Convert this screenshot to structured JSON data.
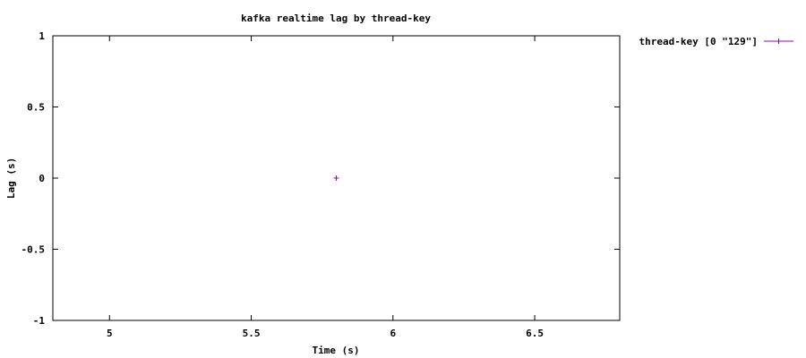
{
  "chart_data": {
    "type": "scatter",
    "title": "kafka realtime lag by thread-key",
    "xlabel": "Time (s)",
    "ylabel": "Lag (s)",
    "xlim": [
      4.8,
      6.8
    ],
    "ylim": [
      -1,
      1
    ],
    "x_ticks": [
      5,
      5.5,
      6,
      6.5
    ],
    "x_tick_labels": [
      "5",
      "5.5",
      "6",
      "6.5"
    ],
    "y_ticks": [
      -1,
      -0.5,
      0,
      0.5,
      1
    ],
    "y_tick_labels": [
      "-1",
      "-0.5",
      "0",
      "0.5",
      "1"
    ],
    "grid": false,
    "legend_position": "outside-top-right",
    "series": [
      {
        "name": "thread-key [0 \"129\"]",
        "color": "#9400d3",
        "marker": "plus",
        "points": [
          {
            "x": 5.8,
            "y": 0
          }
        ]
      }
    ]
  }
}
